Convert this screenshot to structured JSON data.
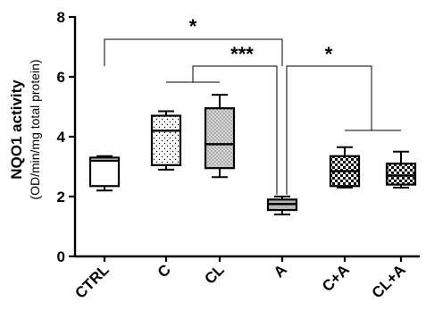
{
  "chart_data": {
    "type": "box",
    "ylabel": "NQO1 activity",
    "ylabel_sub": "(OD/min/mg total protein)",
    "ylim": [
      0,
      8
    ],
    "yticks": [
      "0",
      "2",
      "4",
      "6",
      "8"
    ],
    "categories": [
      "CTRL",
      "C",
      "CL",
      "A",
      "C+A",
      "CL+A"
    ],
    "boxes": [
      {
        "group": "CTRL",
        "min": 2.2,
        "q1": 2.35,
        "median": 3.2,
        "q3": 3.3,
        "max": 3.35,
        "fill": "white"
      },
      {
        "group": "C",
        "min": 2.9,
        "q1": 3.05,
        "median": 4.2,
        "q3": 4.7,
        "max": 4.85,
        "fill": "sparse-dots"
      },
      {
        "group": "CL",
        "min": 2.65,
        "q1": 2.95,
        "median": 3.75,
        "q3": 4.95,
        "max": 5.4,
        "fill": "dense-dots"
      },
      {
        "group": "A",
        "min": 1.4,
        "q1": 1.55,
        "median": 1.75,
        "q3": 1.9,
        "max": 2.0,
        "fill": "gray"
      },
      {
        "group": "C+A",
        "min": 2.3,
        "q1": 2.35,
        "median": 2.85,
        "q3": 3.35,
        "max": 3.65,
        "fill": "checker"
      },
      {
        "group": "CL+A",
        "min": 2.3,
        "q1": 2.4,
        "median": 2.7,
        "q3": 3.1,
        "max": 3.5,
        "fill": "checker"
      }
    ],
    "significance": [
      {
        "label": "*",
        "from": "CTRL",
        "to": "A"
      },
      {
        "label": "***",
        "from": "C-CL",
        "to": "A"
      },
      {
        "label": "*",
        "from": "A",
        "to": "C+A-CL+A"
      }
    ]
  }
}
